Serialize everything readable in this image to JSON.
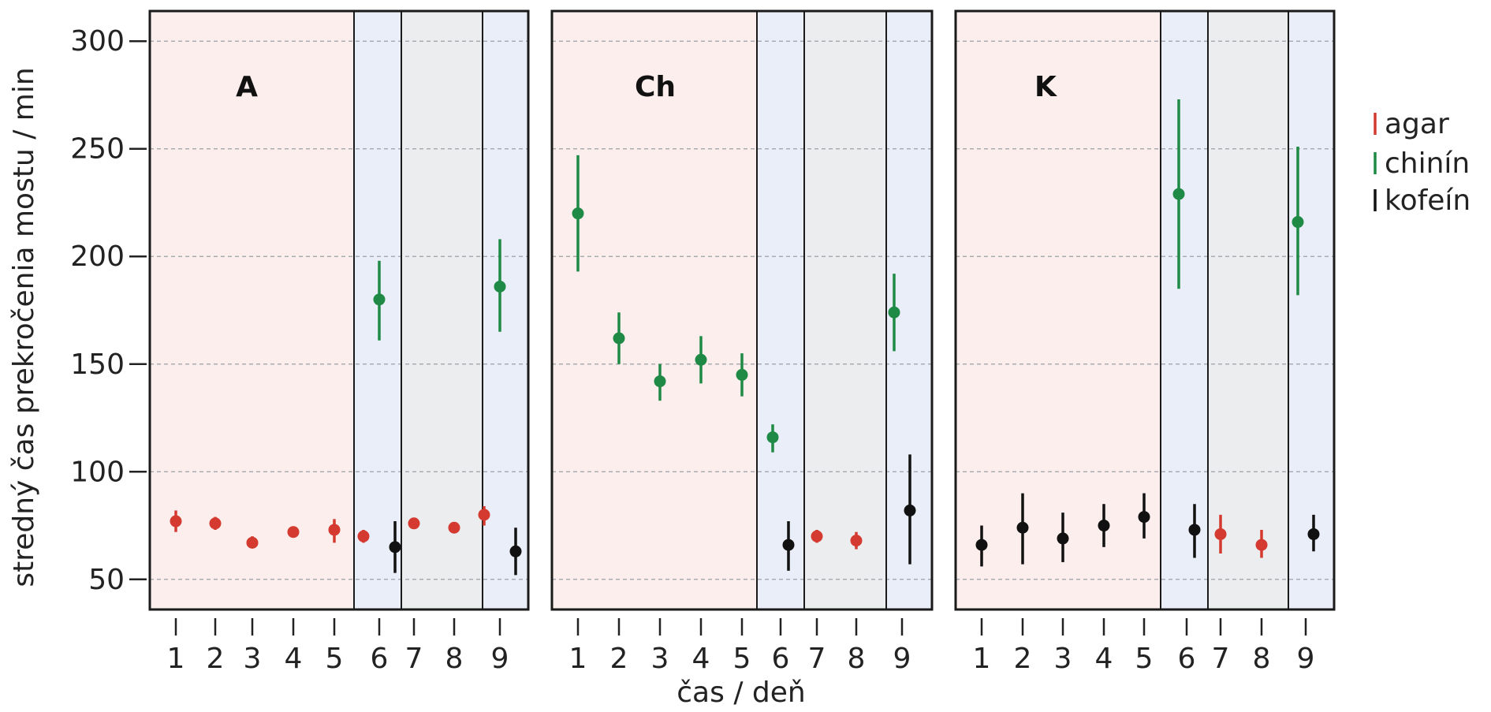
{
  "chart_data": {
    "type": "scatter",
    "ylabel": "stredný čas prekročenia mostu / min",
    "xlabel": "čas / deň",
    "ylim": [
      36,
      314
    ],
    "yticks": [
      50,
      100,
      150,
      200,
      250,
      300
    ],
    "xticks": [
      "1",
      "2",
      "3",
      "4",
      "5",
      "6",
      "7",
      "8",
      "9"
    ],
    "grid": "horizontal dashed",
    "legend_position": "right",
    "legend": [
      {
        "key": "agar",
        "label": "agar",
        "color": "#d43a2f"
      },
      {
        "key": "chinin",
        "label": "chinín",
        "color": "#1e8a45"
      },
      {
        "key": "kofein",
        "label": "kofeín",
        "color": "#111111"
      }
    ],
    "day_backgrounds": {
      "pink": "#fbeeec",
      "blue": "#eaeef8",
      "gray": "#ecedee",
      "days": [
        "pink",
        "pink",
        "pink",
        "pink",
        "pink",
        "blue",
        "gray",
        "gray",
        "blue"
      ]
    },
    "panels": [
      {
        "label": "A",
        "points": [
          {
            "day": 1,
            "series": "agar",
            "y": 77,
            "low": 72,
            "high": 82
          },
          {
            "day": 2,
            "series": "agar",
            "y": 76,
            "low": 73,
            "high": 79
          },
          {
            "day": 3,
            "series": "agar",
            "y": 67,
            "low": 65,
            "high": 70
          },
          {
            "day": 4,
            "series": "agar",
            "y": 72,
            "low": 70,
            "high": 74
          },
          {
            "day": 5,
            "series": "agar",
            "y": 73,
            "low": 67,
            "high": 78
          },
          {
            "day": 6,
            "series": "agar",
            "y": 70,
            "low": 67,
            "high": 73
          },
          {
            "day": 6,
            "series": "chinin",
            "y": 180,
            "low": 161,
            "high": 198
          },
          {
            "day": 6,
            "series": "kofein",
            "y": 65,
            "low": 53,
            "high": 77
          },
          {
            "day": 7,
            "series": "agar",
            "y": 76,
            "low": 74,
            "high": 78
          },
          {
            "day": 8,
            "series": "agar",
            "y": 74,
            "low": 72,
            "high": 76
          },
          {
            "day": 9,
            "series": "agar",
            "y": 80,
            "low": 75,
            "high": 84
          },
          {
            "day": 9,
            "series": "chinin",
            "y": 186,
            "low": 165,
            "high": 208
          },
          {
            "day": 9,
            "series": "kofein",
            "y": 63,
            "low": 52,
            "high": 74
          }
        ]
      },
      {
        "label": "Ch",
        "points": [
          {
            "day": 1,
            "series": "chinin",
            "y": 220,
            "low": 193,
            "high": 247
          },
          {
            "day": 2,
            "series": "chinin",
            "y": 162,
            "low": 150,
            "high": 174
          },
          {
            "day": 3,
            "series": "chinin",
            "y": 142,
            "low": 133,
            "high": 150
          },
          {
            "day": 4,
            "series": "chinin",
            "y": 152,
            "low": 141,
            "high": 163
          },
          {
            "day": 5,
            "series": "chinin",
            "y": 145,
            "low": 135,
            "high": 155
          },
          {
            "day": 6,
            "series": "chinin",
            "y": 116,
            "low": 109,
            "high": 122
          },
          {
            "day": 6,
            "series": "kofein",
            "y": 66,
            "low": 54,
            "high": 77
          },
          {
            "day": 7,
            "series": "agar",
            "y": 70,
            "low": 67,
            "high": 73
          },
          {
            "day": 8,
            "series": "agar",
            "y": 68,
            "low": 64,
            "high": 72
          },
          {
            "day": 9,
            "series": "chinin",
            "y": 174,
            "low": 156,
            "high": 192
          },
          {
            "day": 9,
            "series": "kofein",
            "y": 82,
            "low": 57,
            "high": 108
          }
        ]
      },
      {
        "label": "K",
        "points": [
          {
            "day": 1,
            "series": "kofein",
            "y": 66,
            "low": 56,
            "high": 75
          },
          {
            "day": 2,
            "series": "kofein",
            "y": 74,
            "low": 57,
            "high": 90
          },
          {
            "day": 3,
            "series": "kofein",
            "y": 69,
            "low": 58,
            "high": 81
          },
          {
            "day": 4,
            "series": "kofein",
            "y": 75,
            "low": 65,
            "high": 85
          },
          {
            "day": 5,
            "series": "kofein",
            "y": 79,
            "low": 69,
            "high": 90
          },
          {
            "day": 6,
            "series": "chinin",
            "y": 229,
            "low": 185,
            "high": 273
          },
          {
            "day": 6,
            "series": "kofein",
            "y": 73,
            "low": 60,
            "high": 85
          },
          {
            "day": 7,
            "series": "agar",
            "y": 71,
            "low": 62,
            "high": 80
          },
          {
            "day": 8,
            "series": "agar",
            "y": 66,
            "low": 60,
            "high": 73
          },
          {
            "day": 9,
            "series": "chinin",
            "y": 216,
            "low": 182,
            "high": 251
          },
          {
            "day": 9,
            "series": "kofein",
            "y": 71,
            "low": 63,
            "high": 80
          }
        ]
      }
    ]
  }
}
